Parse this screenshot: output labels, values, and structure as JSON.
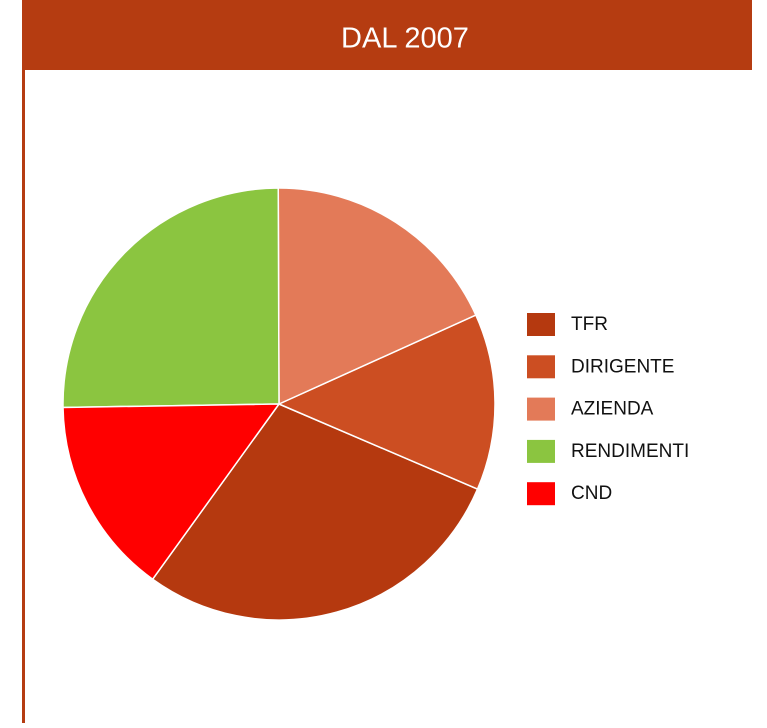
{
  "chart_data": {
    "type": "pie",
    "title": "DAL 2007",
    "categories": [
      "TFR",
      "DIRIGENTE",
      "AZIENDA",
      "RENDIMENTI",
      "CND"
    ],
    "values": [
      28.5,
      13.2,
      18.3,
      25.2,
      14.8
    ],
    "colors": [
      "#b5390f",
      "#cc4e22",
      "#e37a58",
      "#8bc540",
      "#ff0000"
    ],
    "legend": "right"
  }
}
